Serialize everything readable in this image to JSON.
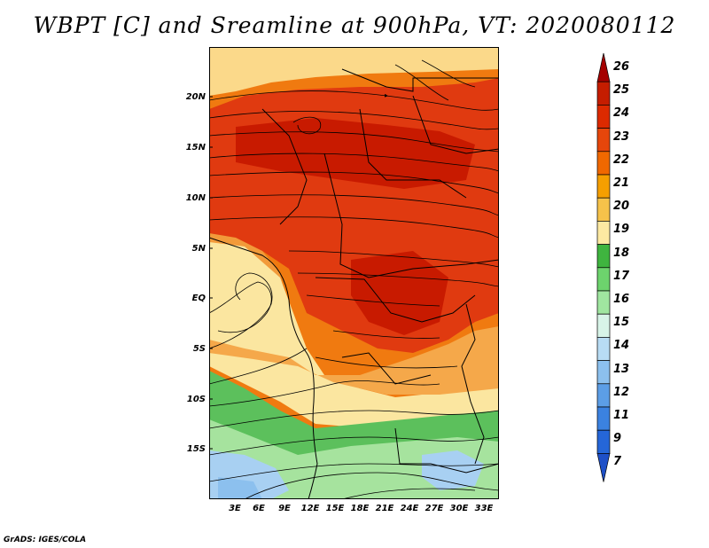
{
  "title": "WBPT [C] and Sreamline at 900hPa, VT: 2020080112",
  "credit": "GrADS: IGES/COLA",
  "map": {
    "lat_labels": [
      "20N",
      "15N",
      "10N",
      "5N",
      "EQ",
      "5S",
      "10S",
      "15S"
    ],
    "lon_labels": [
      "3E",
      "6E",
      "9E",
      "12E",
      "15E",
      "18E",
      "21E",
      "24E",
      "27E",
      "30E",
      "33E"
    ]
  },
  "colorbar": {
    "labels": [
      "26",
      "25",
      "24",
      "23",
      "22",
      "21",
      "20",
      "19",
      "18",
      "17",
      "16",
      "15",
      "14",
      "13",
      "12",
      "11",
      "9",
      "7"
    ],
    "colors": [
      "#a50000",
      "#c51d00",
      "#dc2a00",
      "#e6460b",
      "#f06800",
      "#f59f00",
      "#f6c24a",
      "#fde9a2",
      "#3fb43f",
      "#6dd36d",
      "#a0e6a0",
      "#d8f4e8",
      "#b8dcf4",
      "#8cc0ee",
      "#5c9ee6",
      "#3b82e0",
      "#2566d8",
      "#1e50c8"
    ]
  },
  "colors": {
    "red_dark": "#c81a00",
    "red": "#e03a10",
    "orange": "#f07a10",
    "orange_light": "#f5a84a",
    "yellow": "#fbe6a0",
    "green": "#5cc05c",
    "green_light": "#a6e39e",
    "blue_light": "#a8d0f2"
  }
}
